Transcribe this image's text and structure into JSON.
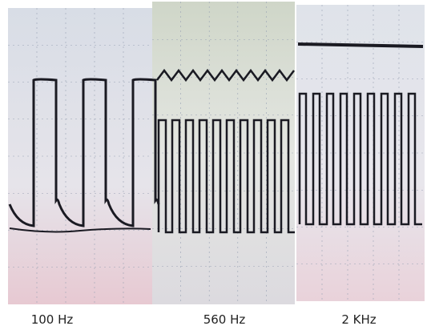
{
  "panels": [
    {
      "caption": "100 Hz"
    },
    {
      "caption": "560 Hz"
    },
    {
      "caption": "2 KHz"
    }
  ]
}
